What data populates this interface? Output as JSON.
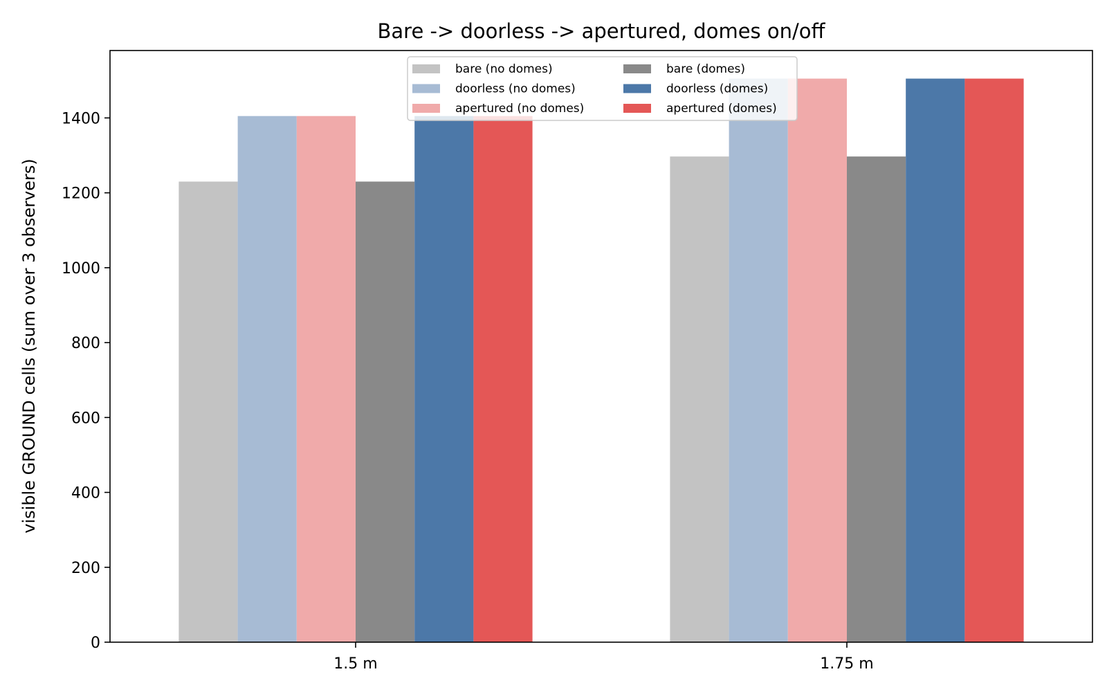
{
  "chart_data": {
    "type": "bar",
    "title": "Bare -> doorless -> apertured, domes on/off",
    "xlabel": "",
    "ylabel": "visible GROUND cells (sum over 3 observers)",
    "categories": [
      "1.5 m",
      "1.75 m"
    ],
    "ylim": [
      0,
      1580
    ],
    "yticks": [
      0,
      200,
      400,
      600,
      800,
      1000,
      1200,
      1400
    ],
    "grid": false,
    "legend_position": "top-center",
    "series": [
      {
        "name": "bare (no domes)",
        "color": "#c3c3c3",
        "values": [
          1230,
          1297
        ]
      },
      {
        "name": "doorless (no domes)",
        "color": "#a7bbd4",
        "values": [
          1405,
          1505
        ]
      },
      {
        "name": "apertured (no domes)",
        "color": "#f0aaaa",
        "values": [
          1405,
          1505
        ]
      },
      {
        "name": "bare (domes)",
        "color": "#898989",
        "values": [
          1230,
          1297
        ]
      },
      {
        "name": "doorless (domes)",
        "color": "#4c78a8",
        "values": [
          1405,
          1505
        ]
      },
      {
        "name": "apertured (domes)",
        "color": "#e45756",
        "values": [
          1405,
          1505
        ]
      }
    ]
  }
}
